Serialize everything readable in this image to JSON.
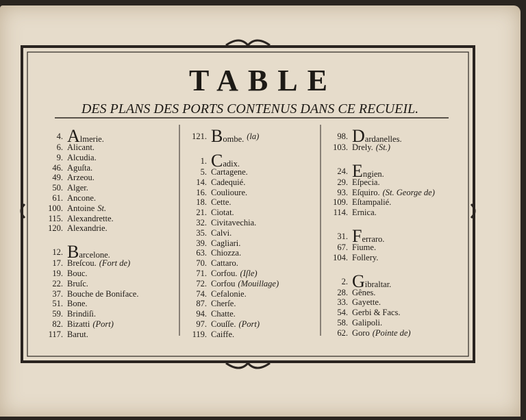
{
  "title": "TABLE",
  "subtitle": "DES PLANS DES PORTS CONTENUS DANS CE RECUEIL.",
  "columns": [
    {
      "groups": [
        {
          "entries": [
            {
              "number": "4.",
              "name": "Almerie."
            },
            {
              "number": "6.",
              "name": "Alicant."
            },
            {
              "number": "9.",
              "name": "Alcudia."
            },
            {
              "number": "46.",
              "name": "Aguſta."
            },
            {
              "number": "49.",
              "name": "Arzeou."
            },
            {
              "number": "50.",
              "name": "Alger."
            },
            {
              "number": "61.",
              "name": "Ancone."
            },
            {
              "number": "100.",
              "name": "Antoine",
              "note": "St."
            },
            {
              "number": "115.",
              "name": "Alexandrette."
            },
            {
              "number": "120.",
              "name": "Alexandrie."
            }
          ]
        },
        {
          "entries": [
            {
              "number": "12.",
              "name": "Barcelone."
            },
            {
              "number": "17.",
              "name": "Breſcou.",
              "note": "(Fort de)"
            },
            {
              "number": "19.",
              "name": "Bouc."
            },
            {
              "number": "22.",
              "name": "Bruſc."
            },
            {
              "number": "37.",
              "name": "Bouche de Boniface."
            },
            {
              "number": "51.",
              "name": "Bone."
            },
            {
              "number": "59.",
              "name": "Brindiſi."
            },
            {
              "number": "82.",
              "name": "Bizatti",
              "note": "(Port)"
            },
            {
              "number": "117.",
              "name": "Barut."
            }
          ]
        }
      ]
    },
    {
      "groups": [
        {
          "entries": [
            {
              "number": "121.",
              "name": "Bombe.",
              "note": "(la)"
            }
          ]
        },
        {
          "entries": [
            {
              "number": "1.",
              "name": "Cadix."
            },
            {
              "number": "5.",
              "name": "Cartagene."
            },
            {
              "number": "14.",
              "name": "Cadequié."
            },
            {
              "number": "16.",
              "name": "Coulioure."
            },
            {
              "number": "18.",
              "name": "Cette."
            },
            {
              "number": "21.",
              "name": "Ciotat."
            },
            {
              "number": "32.",
              "name": "Civitavechia."
            },
            {
              "number": "35.",
              "name": "Calvi."
            },
            {
              "number": "39.",
              "name": "Cagliari."
            },
            {
              "number": "63.",
              "name": "Chiozza."
            },
            {
              "number": "70.",
              "name": "Cattaro."
            },
            {
              "number": "71.",
              "name": "Corfou.",
              "note": "(Iſle)"
            },
            {
              "number": "72.",
              "name": "Corfou",
              "note": "(Mouillage)"
            },
            {
              "number": "74.",
              "name": "Cefalonie."
            },
            {
              "number": "87.",
              "name": "Cherſe."
            },
            {
              "number": "94.",
              "name": "Chatte."
            },
            {
              "number": "97.",
              "name": "Couſſe.",
              "note": "(Port)"
            },
            {
              "number": "119.",
              "name": "Caiffe."
            }
          ]
        }
      ]
    },
    {
      "groups": [
        {
          "entries": [
            {
              "number": "98.",
              "name": "Dardanelles."
            },
            {
              "number": "103.",
              "name": "Drely.",
              "note": "(St.)"
            }
          ]
        },
        {
          "entries": [
            {
              "number": "24.",
              "name": "Engien."
            },
            {
              "number": "29.",
              "name": "Eſpecia."
            },
            {
              "number": "93.",
              "name": "Eſquiro.",
              "note": "(St. George de)"
            },
            {
              "number": "109.",
              "name": "Eſtampalié."
            },
            {
              "number": "114.",
              "name": "Ernica."
            }
          ]
        },
        {
          "entries": [
            {
              "number": "31.",
              "name": "Ferraro."
            },
            {
              "number": "67.",
              "name": "Fiume."
            },
            {
              "number": "104.",
              "name": "Follery."
            }
          ]
        },
        {
          "entries": [
            {
              "number": "2.",
              "name": "Gibraltar."
            },
            {
              "number": "28.",
              "name": "Gênes."
            },
            {
              "number": "33.",
              "name": "Gayette."
            },
            {
              "number": "54.",
              "name": "Gerbi & Facs."
            },
            {
              "number": "58.",
              "name": "Galipoli."
            },
            {
              "number": "62.",
              "name": "Goro",
              "note": "(Pointe de)"
            }
          ]
        }
      ]
    }
  ]
}
